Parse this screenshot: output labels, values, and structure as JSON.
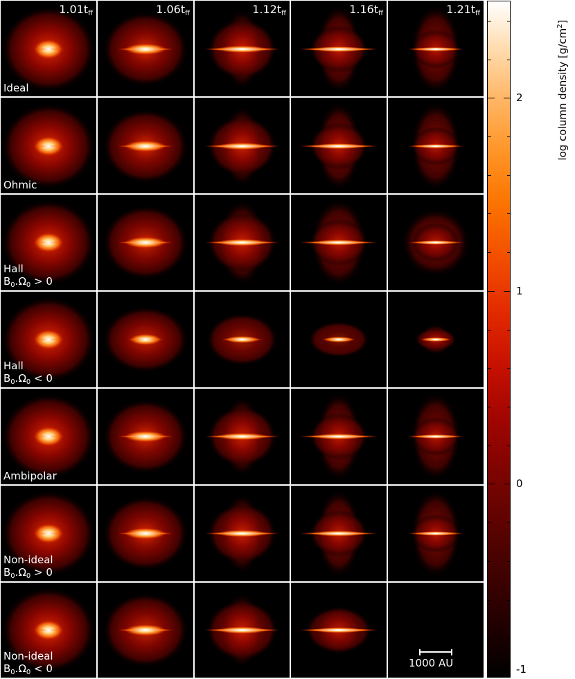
{
  "columns": [
    {
      "value": "1.01",
      "sub": "ff"
    },
    {
      "value": "1.06",
      "sub": "ff"
    },
    {
      "value": "1.12",
      "sub": "ff"
    },
    {
      "value": "1.16",
      "sub": "ff"
    },
    {
      "value": "1.21",
      "sub": "ff"
    }
  ],
  "rows": [
    {
      "name": "Ideal",
      "cond": "",
      "sign": ""
    },
    {
      "name": "Ohmic",
      "cond": "",
      "sign": ""
    },
    {
      "name": "Hall",
      "cond": "B0.Ω0",
      "sign": "> 0"
    },
    {
      "name": "Hall",
      "cond": "B0.Ω0",
      "sign": "< 0"
    },
    {
      "name": "Ambipolar",
      "cond": "",
      "sign": ""
    },
    {
      "name": "Non-ideal",
      "cond": "B0.Ω0",
      "sign": "> 0"
    },
    {
      "name": "Non-ideal",
      "cond": "B0.Ω0",
      "sign": "< 0"
    }
  ],
  "colorbar": {
    "label_main": "log column density [g/cm",
    "label_sup": "2",
    "label_end": "]",
    "min": -1,
    "max": 2.5,
    "tick_labels": [
      "2",
      "1",
      "0",
      "-1"
    ],
    "tick_values": [
      2,
      1,
      0,
      -1
    ],
    "minor_step": 0.2,
    "colors": [
      "#000000",
      "#7c0400",
      "#e22a00",
      "#fb7300",
      "#ffffff"
    ]
  },
  "scale_bar": {
    "label": "1000 AU"
  },
  "empty_panel": {
    "row": 6,
    "col": 4
  }
}
